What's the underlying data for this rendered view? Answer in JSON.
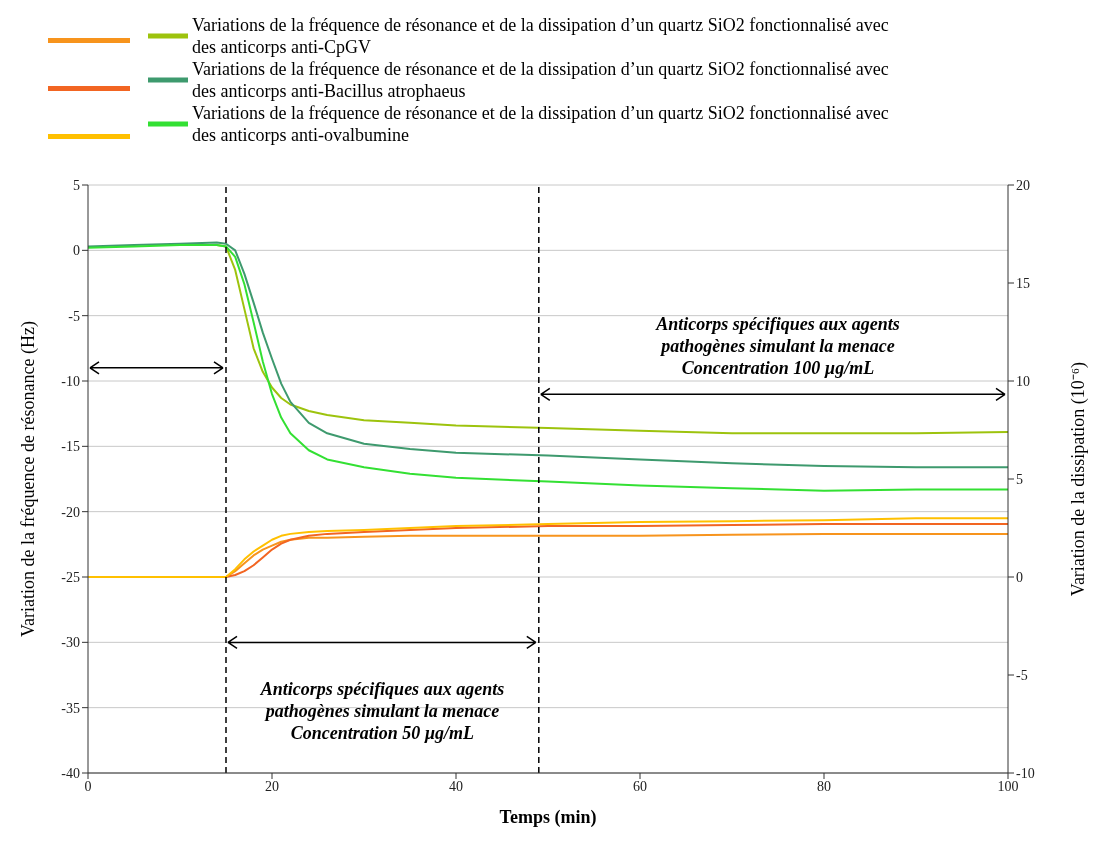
{
  "chart_data": {
    "type": "line",
    "xlabel": "Temps (min)",
    "ylabel": "Variation de la fréquence de résonance  (Hz)",
    "y2label": "Variation de la dissipation (10⁻⁶)",
    "x": [
      0,
      5,
      10,
      14,
      15,
      16,
      17,
      18,
      19,
      20,
      21,
      22,
      24,
      26,
      30,
      35,
      40,
      50,
      60,
      70,
      80,
      90,
      100
    ],
    "series": [
      {
        "color": "#f7941d",
        "axis": "y2",
        "values": [
          null,
          null,
          null,
          0,
          0,
          0.3,
          0.7,
          1.1,
          1.4,
          1.6,
          1.8,
          1.9,
          2.0,
          2.0,
          2.05,
          2.1,
          2.1,
          2.1,
          2.1,
          2.15,
          2.2,
          2.2,
          2.2
        ]
      },
      {
        "name": "Variations de la fréquence de résonance et de la dissipation d’un quartz SiO2 fonctionnalisé avec des anticorps anti-CpGV",
        "color": "#9dc30d",
        "values": [
          null,
          null,
          null,
          0.4,
          0.3,
          -1.5,
          -4.5,
          -7.5,
          -9.3,
          -10.5,
          -11.3,
          -11.8,
          -12.3,
          -12.6,
          -13,
          -13.2,
          -13.4,
          -13.6,
          -13.8,
          -14,
          -14,
          -14,
          -13.9
        ]
      },
      {
        "color": "#f26522",
        "axis": "y2",
        "values": [
          null,
          null,
          null,
          0,
          0,
          0.1,
          0.3,
          0.6,
          1.0,
          1.4,
          1.7,
          1.9,
          2.1,
          2.2,
          2.3,
          2.4,
          2.5,
          2.6,
          2.6,
          2.65,
          2.7,
          2.7,
          2.7
        ]
      },
      {
        "name": "Variations de la fréquence de résonance et de la dissipation d’un quartz SiO2 fonctionnalisé avec des anticorps anti-Bacillus atrophaeus",
        "color": "#3e9a6e",
        "values": [
          0.3,
          0.4,
          0.5,
          0.6,
          0.5,
          0,
          -1.8,
          -4,
          -6.3,
          -8.3,
          -10.2,
          -11.6,
          -13.2,
          -14,
          -14.8,
          -15.2,
          -15.5,
          -15.7,
          -16,
          -16.3,
          -16.5,
          -16.6,
          -16.6
        ]
      },
      {
        "color": "#ffc000",
        "axis": "y2",
        "values": [
          0,
          0,
          0,
          0,
          0,
          0.4,
          0.9,
          1.3,
          1.6,
          1.9,
          2.1,
          2.2,
          2.3,
          2.35,
          2.4,
          2.5,
          2.6,
          2.7,
          2.8,
          2.85,
          2.9,
          3.0,
          3.0
        ]
      },
      {
        "name": "Variations de la fréquence de résonance et de la dissipation d’un quartz SiO2 fonctionnalisé avec des anticorps anti-ovalbumine",
        "color": "#33e033",
        "values": [
          0.2,
          0.3,
          0.4,
          0.4,
          0.3,
          -0.5,
          -2.6,
          -5.5,
          -8.5,
          -11,
          -12.8,
          -14,
          -15.3,
          -16,
          -16.6,
          -17.1,
          -17.4,
          -17.7,
          -18,
          -18.2,
          -18.4,
          -18.3,
          -18.3
        ]
      }
    ],
    "xlim": [
      0,
      100
    ],
    "xticks": [
      0,
      20,
      40,
      60,
      80,
      100
    ],
    "ylim": [
      -40,
      5
    ],
    "yticks": [
      -40,
      -35,
      -30,
      -25,
      -20,
      -15,
      -10,
      -5,
      0,
      5
    ],
    "y2lim": [
      -10,
      20
    ],
    "y2ticks": [
      -10,
      -5,
      0,
      5,
      10,
      15,
      20
    ],
    "ref_lines": [
      {
        "axis": "x",
        "value": 15,
        "color": "#000000",
        "line_style": "dashed"
      },
      {
        "axis": "x",
        "value": 49,
        "color": "#000000",
        "line_style": "dashed"
      }
    ],
    "annotations": [
      "Anticorps spécifiques aux agents\npathogènes simulant la menace\nConcentration 100 µg/mL",
      "Anticorps spécifiques aux agents\npathogènes simulant la menace\nConcentration 50 µg/mL"
    ],
    "grid": "y",
    "legend": "top",
    "marker": "none",
    "line_style": "solid"
  }
}
